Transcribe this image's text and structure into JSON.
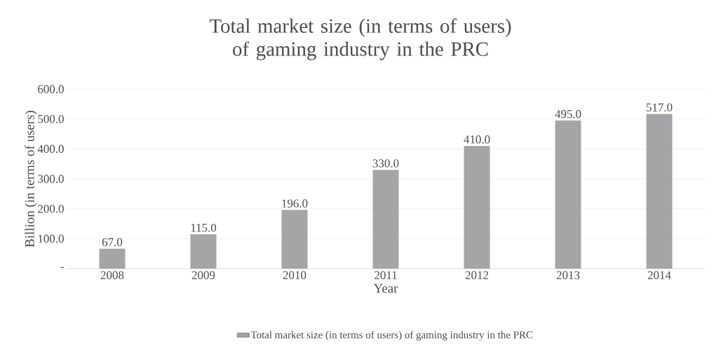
{
  "chart_data": {
    "type": "bar",
    "title": "Total market size (in terms of users) of gaming industry in the PRC",
    "xlabel": "Year",
    "ylabel": "Billion  (in terms of users)",
    "categories": [
      "2008",
      "2009",
      "2010",
      "2011",
      "2012",
      "2013",
      "2014"
    ],
    "series": [
      {
        "name": "Total market size (in terms of users) of gaming industry in the PRC",
        "color": "#a5a5a7",
        "values": [
          67,
          115,
          196,
          330,
          410,
          495,
          517
        ],
        "value_labels": [
          "67.0",
          "115.0",
          "196.0",
          "330.0",
          "410.0",
          "495.0",
          "517.0"
        ]
      }
    ],
    "ylim": [
      0,
      600
    ],
    "yticks": [
      {
        "value": 0,
        "label": "-"
      },
      {
        "value": 100,
        "label": "100.0"
      },
      {
        "value": 200,
        "label": "200.0"
      },
      {
        "value": 300,
        "label": "300.0"
      },
      {
        "value": 400,
        "label": "400.0"
      },
      {
        "value": 500,
        "label": "500.0"
      },
      {
        "value": 600,
        "label": "600.0"
      }
    ],
    "grid": "y",
    "legend": "bottom"
  }
}
